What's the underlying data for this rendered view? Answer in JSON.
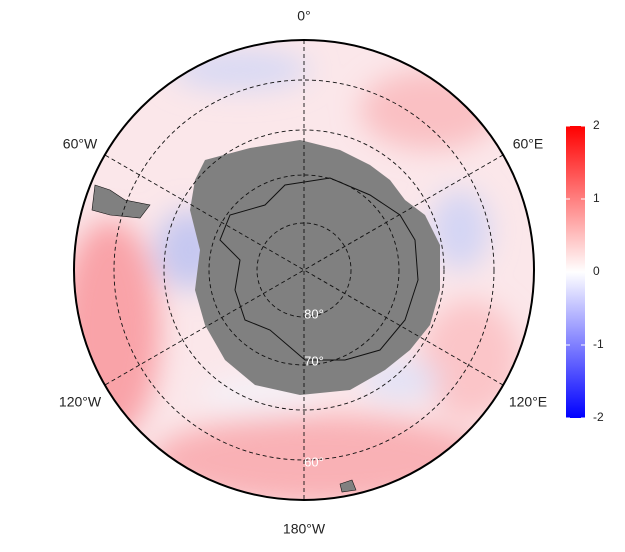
{
  "map": {
    "longitude_labels": [
      "0°",
      "60°E",
      "120°E",
      "180°W",
      "120°W",
      "60°W"
    ],
    "latitude_labels": [
      "80°",
      "70°",
      "60°"
    ]
  },
  "colorbar": {
    "lim": [
      -2,
      2
    ],
    "ticks": [
      2,
      1,
      0,
      -1,
      -2
    ],
    "colors": [
      "#0000ff",
      "#ffffff",
      "#ff0000"
    ]
  }
}
